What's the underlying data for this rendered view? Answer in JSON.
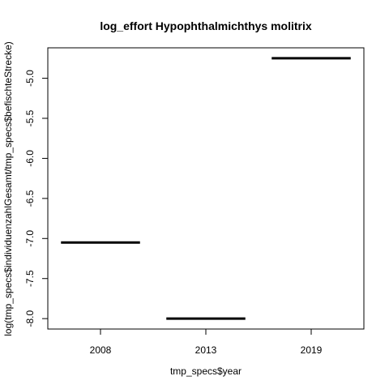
{
  "chart_data": {
    "type": "boxplot",
    "title": "log_effort Hypophthalmichthys molitrix",
    "xlabel": "tmp_specs$year",
    "ylabel": "log(tmp_specs$individuenzahlGesamt/tmp_specs$befischteStrecke)",
    "categories": [
      "2008",
      "2013",
      "2019"
    ],
    "values": [
      -7.05,
      -8.0,
      -4.75
    ],
    "yticks": [
      -5.0,
      -5.5,
      -6.0,
      -6.5,
      -7.0,
      -7.5,
      -8.0
    ],
    "ytick_labels": [
      "-5.0",
      "-5.5",
      "-6.0",
      "-6.5",
      "-7.0",
      "-7.5",
      "-8.0"
    ],
    "ylim": [
      -8.13,
      -4.62
    ],
    "grid": false,
    "colors": {
      "median_line": "#000000",
      "frame": "#000000"
    }
  }
}
